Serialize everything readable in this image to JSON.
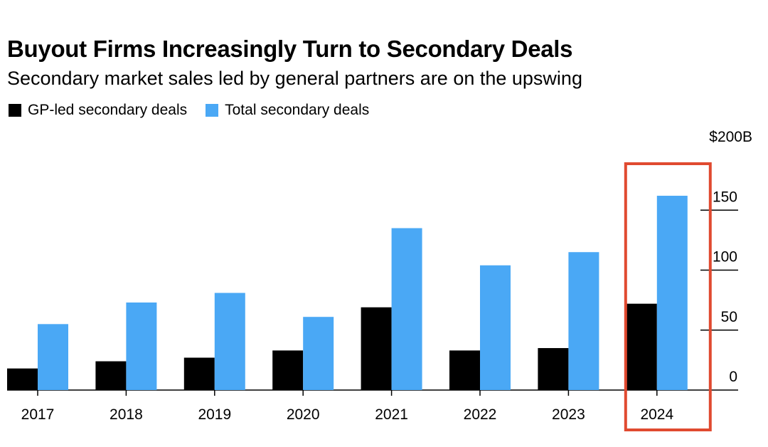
{
  "title": "Buyout Firms Increasingly Turn to Secondary Deals",
  "subtitle": "Secondary market sales led by general partners are on the upswing",
  "legend": [
    {
      "label": "GP-led secondary deals",
      "color": "#000000"
    },
    {
      "label": "Total secondary deals",
      "color": "#4aa8f5"
    }
  ],
  "highlight_color": "#e04a30",
  "chart_data": {
    "type": "bar",
    "categories": [
      "2017",
      "2018",
      "2019",
      "2020",
      "2021",
      "2022",
      "2023",
      "2024"
    ],
    "series": [
      {
        "name": "GP-led secondary deals",
        "color": "#000000",
        "values": [
          18,
          24,
          27,
          33,
          69,
          33,
          35,
          72
        ]
      },
      {
        "name": "Total secondary deals",
        "color": "#4aa8f5",
        "values": [
          55,
          73,
          81,
          61,
          135,
          104,
          115,
          162
        ]
      }
    ],
    "y_ticks": [
      0,
      50,
      100,
      150,
      200
    ],
    "y_tick_labels": [
      "0",
      "50",
      "100",
      "150",
      "$200B"
    ],
    "ylim": [
      0,
      200
    ],
    "highlighted_category": "2024",
    "y_axis_side": "right",
    "grid": false
  }
}
